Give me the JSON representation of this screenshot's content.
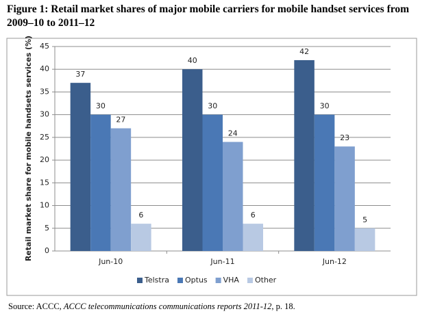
{
  "chart_data": {
    "type": "bar",
    "title": "Figure 1: Retail market shares of major mobile carriers for mobile handset services from 2009–10 to 2011–12",
    "y_label": "Retail market share for mobile handsets services (%)",
    "categories": [
      "Jun-10",
      "Jun-11",
      "Jun-12"
    ],
    "series": [
      {
        "name": "Telstra",
        "color": "#3b5e8c",
        "values": [
          37,
          40,
          42
        ]
      },
      {
        "name": "Optus",
        "color": "#4a78b5",
        "values": [
          30,
          30,
          30
        ]
      },
      {
        "name": "VHA",
        "color": "#7f9fcf",
        "values": [
          27,
          24,
          23
        ]
      },
      {
        "name": "Other",
        "color": "#b8c9e3",
        "values": [
          6,
          6,
          5
        ]
      }
    ],
    "ylim": [
      0,
      45
    ],
    "yticks": [
      0,
      5,
      10,
      15,
      20,
      25,
      30,
      35,
      40,
      45
    ],
    "grid": true,
    "legend": "bottom"
  },
  "source": {
    "prefix": "Source: ACCC, ",
    "publication": "ACCC telecommunications communications reports 2011-12",
    "suffix": ", p. 18."
  }
}
